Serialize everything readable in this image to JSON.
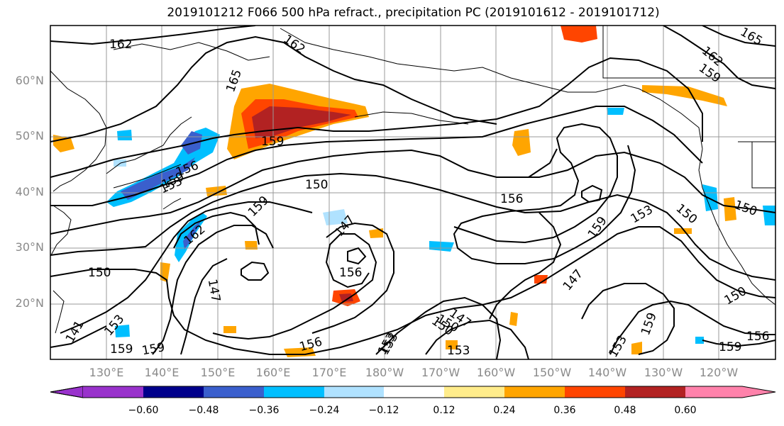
{
  "title": "2019101212 F066 500 hPa refract., precipitation PC (2019101612 - 2019101712)",
  "lat_labels": [
    "60°N",
    "50°N",
    "40°N",
    "30°N",
    "20°N"
  ],
  "lon_labels": [
    "130°E",
    "140°E",
    "150°E",
    "160°E",
    "170°E",
    "180°W",
    "170°W",
    "160°W",
    "150°W",
    "140°W",
    "130°W",
    "120°W"
  ],
  "colorbar": {
    "ticks": [
      "−0.60",
      "−0.48",
      "−0.36",
      "−0.24",
      "−0.12",
      "0.12",
      "0.24",
      "0.36",
      "0.48",
      "0.60"
    ],
    "colors": [
      "#9932cc",
      "#00008b",
      "#3a5fcd",
      "#00bfff",
      "#b0e2ff",
      "#ffffff",
      "#ffec8b",
      "#ffa500",
      "#ff4500",
      "#b22222",
      "#ff82ab"
    ]
  },
  "contour_labels": [
    "162",
    "162",
    "165",
    "165",
    "162",
    "159",
    "159",
    "156",
    "153",
    "159",
    "150",
    "156",
    "162",
    "147",
    "153",
    "150",
    "159",
    "147",
    "156",
    "147",
    "150",
    "153",
    "156",
    "153",
    "159",
    "159",
    "153",
    "150",
    "150",
    "141",
    "153",
    "159",
    "159",
    "156",
    "150",
    "159",
    "147",
    "150",
    "153"
  ]
}
